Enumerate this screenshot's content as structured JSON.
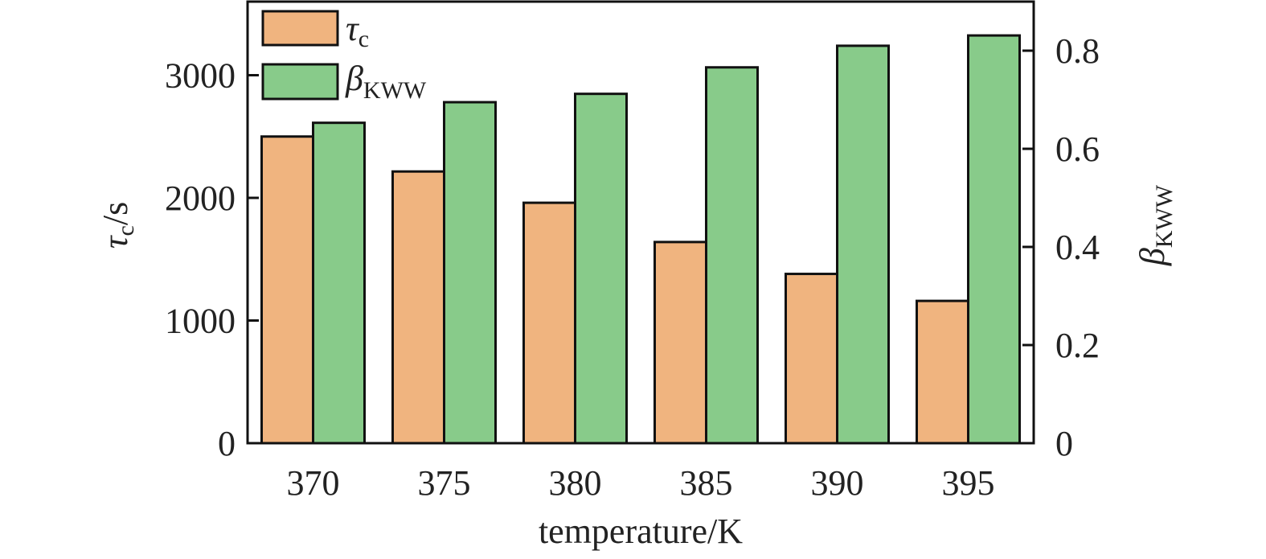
{
  "chart_data": {
    "type": "bar",
    "xlabel": "temperature/K",
    "ylabel": {
      "main": "τ",
      "sub": "c",
      "unit": "/s"
    },
    "y2label": {
      "main": "β",
      "sub": "KWW"
    },
    "categories": [
      "370",
      "375",
      "380",
      "385",
      "390",
      "395"
    ],
    "ylim": [
      0,
      3600
    ],
    "y2lim": [
      0,
      0.9
    ],
    "yticks": [
      "0",
      "1000",
      "2000",
      "3000"
    ],
    "y2ticks": [
      "0",
      "0.2",
      "0.4",
      "0.6",
      "0.8"
    ],
    "legend_position": "top-left",
    "series": [
      {
        "name": "τ",
        "sub": "c",
        "axis": "left",
        "color": "#f0b47f",
        "values": [
          2500,
          2215,
          1960,
          1640,
          1380,
          1160
        ]
      },
      {
        "name": "β",
        "sub": "KWW",
        "axis": "right",
        "color": "#88cb8a",
        "values": [
          0.653,
          0.695,
          0.712,
          0.766,
          0.81,
          0.831
        ]
      }
    ]
  }
}
